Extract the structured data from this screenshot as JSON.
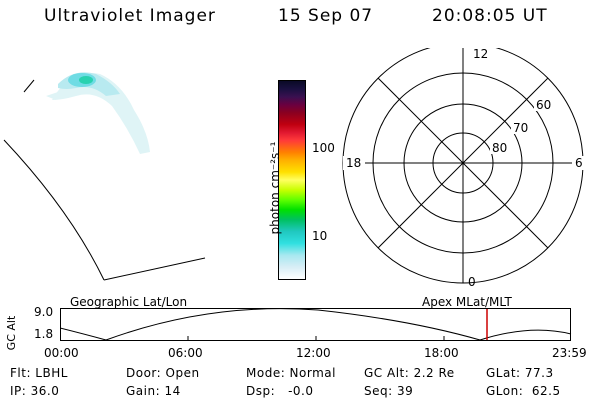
{
  "header": {
    "instrument": "Ultraviolet Imager",
    "date": "15 Sep 07",
    "time": "20:08:05 UT"
  },
  "colorbar": {
    "unit_label": "photon cm⁻²s⁻¹",
    "ticks": [
      "100",
      "10"
    ]
  },
  "polar_plot": {
    "mlt_labels": {
      "top": "12",
      "left": "18",
      "right": "6",
      "bottom": "0"
    },
    "lat_labels": [
      "60",
      "70",
      "80"
    ]
  },
  "timeline": {
    "y_axis_label": "GC Alt",
    "y_ticks": [
      "9.0",
      "1.8"
    ],
    "left_caption": "Geographic Lat/Lon",
    "right_caption": "Apex MLat/MLT",
    "time_ticks": [
      "00:00",
      "06:00",
      "12:00",
      "18:00",
      "23:59"
    ],
    "marker_color": "#cc0000"
  },
  "info": {
    "row1": [
      "Flt: LBHL",
      "Door: Open",
      "Mode: Normal",
      "GC Alt: 2.2 Re",
      "GLat: 77.3"
    ],
    "row2": [
      "IP: 36.0",
      "Gain: 14",
      "Dsp:   -0.0",
      "Seq: 39",
      "GLon:  62.5"
    ]
  },
  "colors": {
    "aurora_light": "#c8ecf0",
    "aurora_mid": "#5fd8e0",
    "aurora_bright": "#20d0a8"
  }
}
